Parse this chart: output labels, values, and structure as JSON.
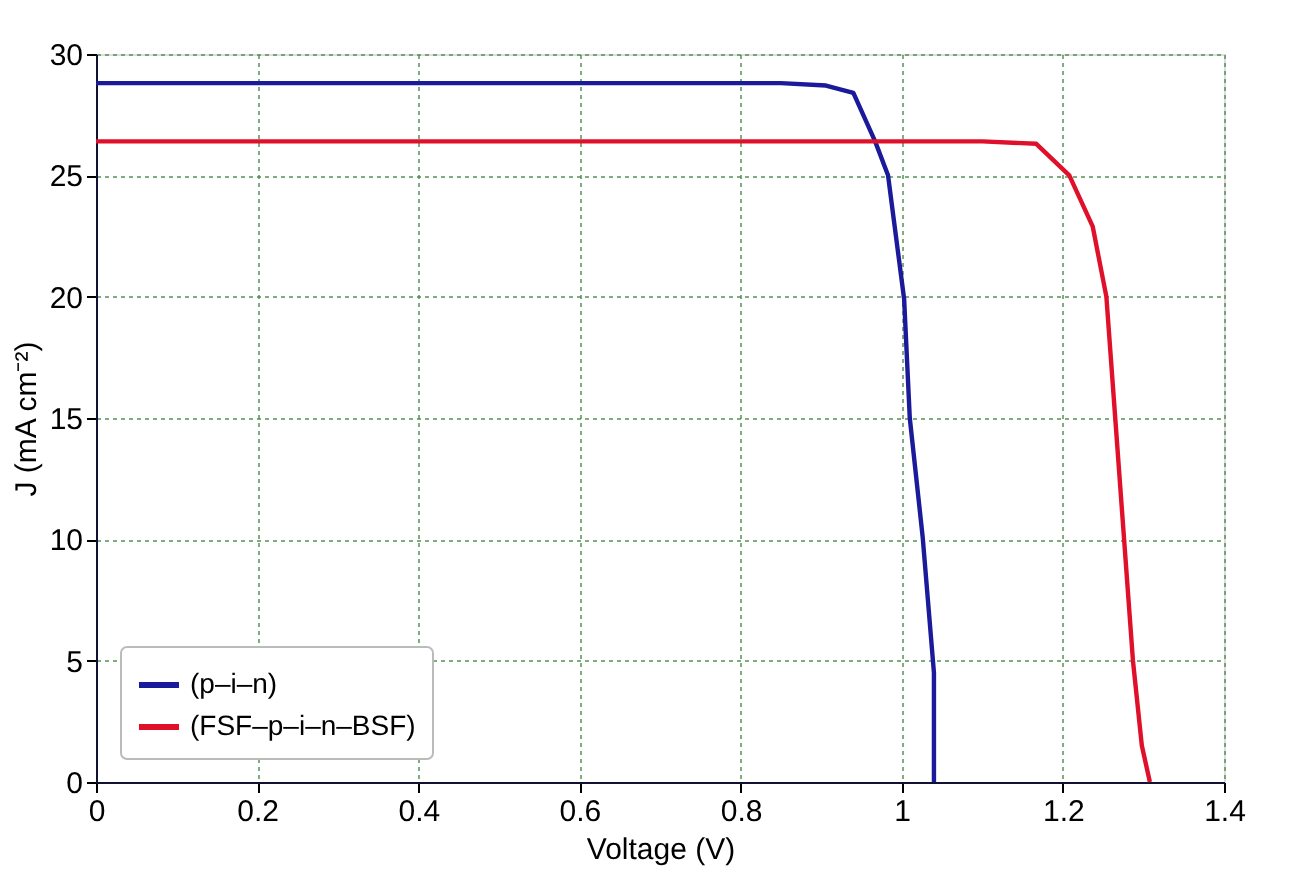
{
  "chart_data": {
    "type": "line",
    "xlabel": "Voltage (V)",
    "ylabel": "J (mA cm⁻²)",
    "xlim": [
      0,
      1.4
    ],
    "xticks": [
      0,
      0.2,
      0.4,
      0.6,
      0.8,
      1,
      1.2,
      1.4
    ],
    "ylim": [
      0,
      30
    ],
    "yticks": [
      0,
      5,
      10,
      15,
      20,
      25,
      30
    ],
    "grid": true,
    "legend": "bottom left",
    "marker": "none",
    "line_style": "solid",
    "series": [
      {
        "name": "(p–i–n)",
        "color": "#1a1a9a",
        "x": [
          0,
          0.2,
          0.4,
          0.6,
          0.8,
          0.85,
          0.906,
          0.94,
          0.967,
          0.983,
          1.003,
          1.01,
          1.026,
          1.039,
          1.04,
          1.04
        ],
        "values": [
          28.8,
          28.8,
          28.8,
          28.8,
          28.8,
          28.8,
          28.7,
          28.4,
          26.4,
          25,
          19.9,
          15,
          10.1,
          4.9,
          4.5,
          0
        ]
      },
      {
        "name": "(FSF–p–i–n–BSF)",
        "color": "#e0102a",
        "x": [
          0,
          0.2,
          0.4,
          0.6,
          0.8,
          1,
          1.1,
          1.167,
          1.208,
          1.237,
          1.254,
          1.265,
          1.276,
          1.287,
          1.298,
          1.308
        ],
        "values": [
          26.4,
          26.4,
          26.4,
          26.4,
          26.4,
          26.4,
          26.4,
          26.3,
          25,
          22.9,
          20,
          15,
          10,
          5,
          1.5,
          0
        ]
      }
    ]
  }
}
